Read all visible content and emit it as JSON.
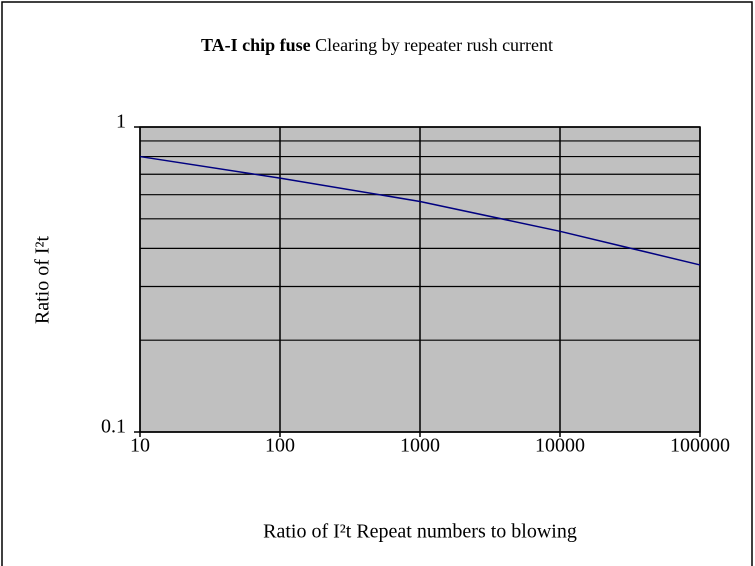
{
  "chart_data": {
    "type": "line",
    "title": [
      "TA-I chip fuse",
      "Clearing by repeater rush current"
    ],
    "x_label": "Ratio of I²t Repeat numbers to blowing",
    "y_label": "Ratio of I²t",
    "x": [
      10,
      100,
      1000,
      10000,
      100000
    ],
    "series": [
      {
        "name": "Ratio of I²t",
        "color": "#000080",
        "values": [
          0.8,
          0.68,
          0.57,
          0.455,
          0.353
        ]
      }
    ],
    "xlim": [
      10,
      100000
    ],
    "xticks": [
      10,
      100,
      1000,
      10000,
      100000
    ],
    "xlog": true,
    "ylim": [
      0.1,
      1
    ],
    "yticks": [
      0.1,
      1
    ],
    "yminor": [
      0.2,
      0.3,
      0.4,
      0.5,
      0.6,
      0.7,
      0.8,
      0.9
    ],
    "ylog": true,
    "grid": true,
    "plot_color": "#c0c0c0",
    "legend": false
  }
}
